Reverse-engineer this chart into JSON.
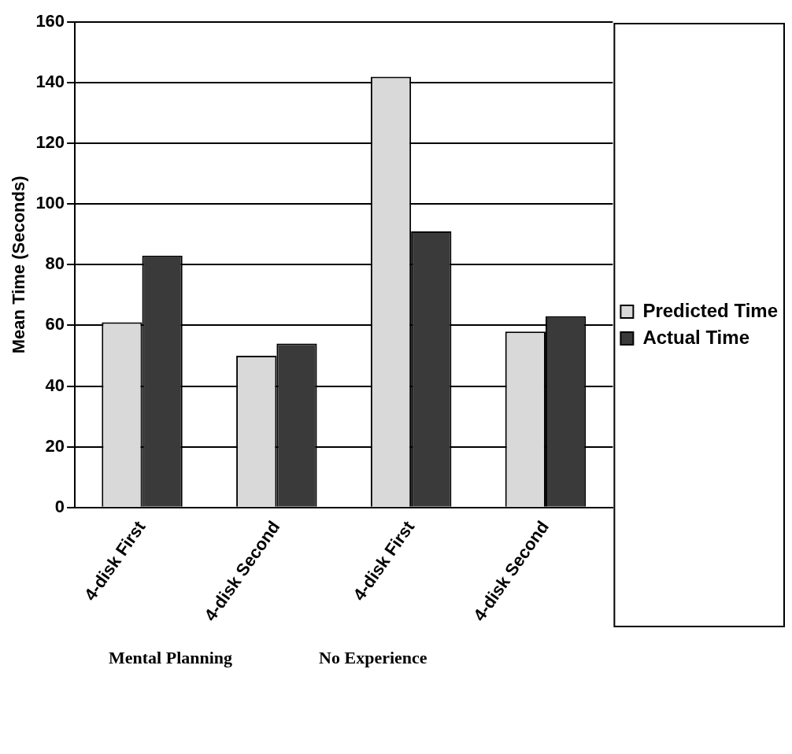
{
  "chart_data": {
    "type": "bar",
    "ylabel": "Mean Time (Seconds)",
    "categories": [
      "4-disk First",
      "4-disk Second",
      "4-disk First",
      "4-disk Second"
    ],
    "series": [
      {
        "name": "Predicted Time",
        "color": "#d9d9d9",
        "values": [
          61,
          50,
          142,
          58
        ]
      },
      {
        "name": "Actual Time",
        "color": "#3a3a3a",
        "values": [
          83,
          54,
          91,
          63
        ]
      }
    ],
    "ylim": [
      0,
      160
    ],
    "yticks": [
      0,
      20,
      40,
      60,
      80,
      100,
      120,
      140,
      160
    ],
    "grid": "y",
    "legend": "right",
    "annotations": [
      "Mental Planning",
      "No Experience"
    ]
  }
}
